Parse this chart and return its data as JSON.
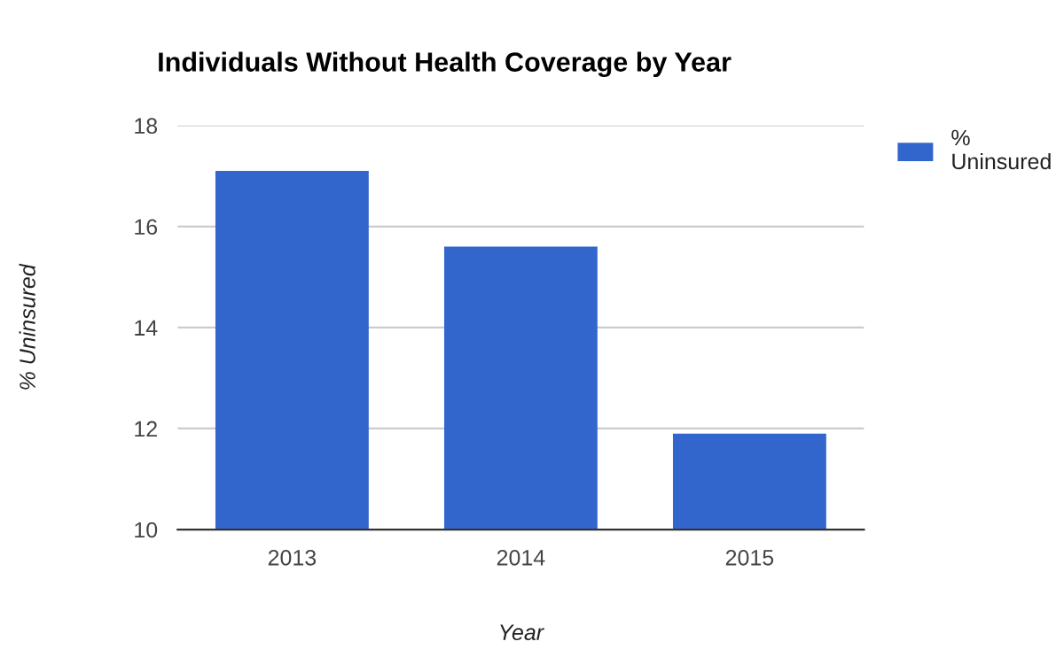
{
  "chart_data": {
    "type": "bar",
    "title": "Individuals Without Health Coverage by Year",
    "xlabel": "Year",
    "ylabel": "% Uninsured",
    "categories": [
      "2013",
      "2014",
      "2015"
    ],
    "series": [
      {
        "name": "% Uninsured",
        "color": "#3366cc",
        "values": [
          17.1,
          15.6,
          11.9
        ]
      }
    ],
    "ylim": [
      10,
      18
    ],
    "yticks": [
      10,
      12,
      14,
      16,
      18
    ],
    "grid": "y",
    "legend": "top right"
  }
}
